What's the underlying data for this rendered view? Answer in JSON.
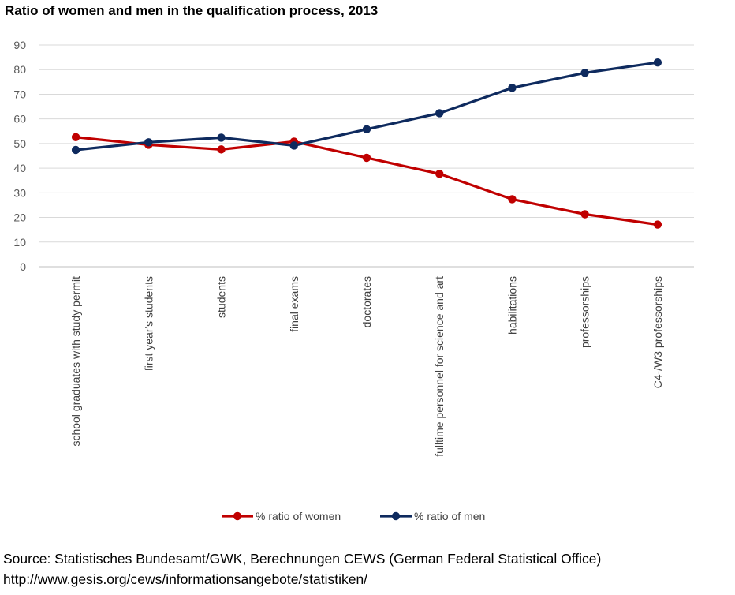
{
  "title": "Ratio of women and men in the qualification process, 2013",
  "footer": {
    "source": "Source: Statistisches Bundesamt/GWK, Berechnungen CEWS (German Federal Statistical Office)",
    "url": "http://www.gesis.org/cews/informationsangebote/statistiken/"
  },
  "chart_data": {
    "type": "line",
    "title": "Ratio of women and men in the qualification process, 2013",
    "xlabel": "",
    "ylabel": "",
    "ylim": [
      0,
      90
    ],
    "yticks": [
      0,
      10,
      20,
      30,
      40,
      50,
      60,
      70,
      80,
      90
    ],
    "grid": true,
    "legend": "bottom",
    "categories": [
      "school graduates with study permit",
      "first year's students",
      "students",
      "final exams",
      "doctorates",
      "fulltime personnel for science and art",
      "habilitations",
      "professorships",
      "C4-/W3 professorships"
    ],
    "series": [
      {
        "name": "% ratio of women",
        "color": "#C00000",
        "values": [
          52.6,
          49.5,
          47.6,
          50.8,
          44.2,
          37.7,
          27.4,
          21.3,
          17.1
        ]
      },
      {
        "name": "% ratio of men",
        "color": "#0E2A5E",
        "values": [
          47.4,
          50.5,
          52.4,
          49.2,
          55.8,
          62.3,
          72.6,
          78.7,
          82.9
        ]
      }
    ]
  }
}
